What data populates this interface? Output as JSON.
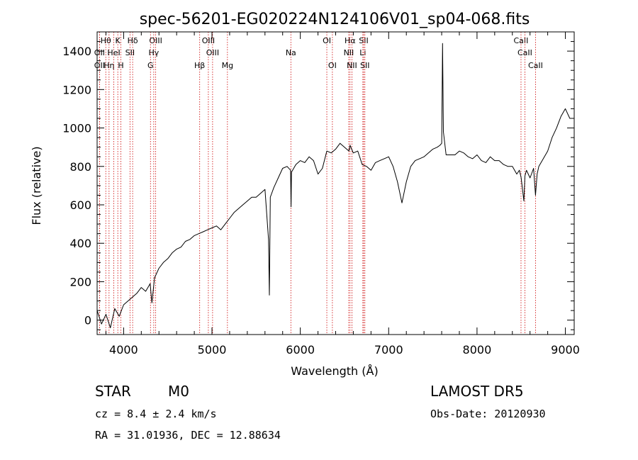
{
  "chart_data": {
    "type": "line",
    "title": "spec-56201-EG020224N124106V01_sp04-068.fits",
    "xlabel": "Wavelength (Å)",
    "ylabel": "Flux (relative)",
    "xlim": [
      3700,
      9100
    ],
    "ylim": [
      -75,
      1500
    ],
    "xticks": [
      4000,
      5000,
      6000,
      7000,
      8000,
      9000
    ],
    "yticks": [
      0,
      200,
      400,
      600,
      800,
      1000,
      1200,
      1400
    ],
    "grid": false,
    "series": [
      {
        "name": "",
        "x": [
          3700,
          3750,
          3800,
          3850,
          3900,
          3950,
          4000,
          4050,
          4100,
          4150,
          4200,
          4250,
          4300,
          4320,
          4350,
          4400,
          4450,
          4500,
          4550,
          4600,
          4650,
          4700,
          4750,
          4800,
          4850,
          4900,
          4950,
          5000,
          5050,
          5100,
          5150,
          5200,
          5250,
          5300,
          5350,
          5400,
          5450,
          5500,
          5550,
          5600,
          5640,
          5650,
          5660,
          5700,
          5750,
          5800,
          5850,
          5890,
          5895,
          5900,
          5950,
          6000,
          6050,
          6100,
          6150,
          6200,
          6250,
          6300,
          6350,
          6400,
          6450,
          6500,
          6550,
          6563,
          6600,
          6650,
          6700,
          6750,
          6800,
          6850,
          6900,
          6950,
          7000,
          7050,
          7100,
          7150,
          7200,
          7250,
          7300,
          7350,
          7400,
          7450,
          7500,
          7550,
          7580,
          7600,
          7610,
          7620,
          7650,
          7700,
          7750,
          7800,
          7850,
          7900,
          7950,
          8000,
          8050,
          8100,
          8150,
          8200,
          8250,
          8300,
          8350,
          8400,
          8450,
          8480,
          8500,
          8530,
          8542,
          8560,
          8600,
          8640,
          8662,
          8680,
          8700,
          8750,
          8800,
          8850,
          8900,
          8950,
          9000,
          9050,
          9060
        ],
        "y": [
          50,
          -20,
          30,
          -40,
          60,
          20,
          80,
          100,
          120,
          140,
          170,
          150,
          190,
          90,
          220,
          270,
          300,
          320,
          350,
          370,
          380,
          410,
          420,
          440,
          450,
          460,
          470,
          480,
          490,
          470,
          500,
          530,
          560,
          580,
          600,
          620,
          640,
          640,
          660,
          680,
          420,
          130,
          640,
          690,
          740,
          790,
          800,
          780,
          590,
          770,
          810,
          830,
          820,
          850,
          830,
          760,
          790,
          880,
          870,
          890,
          920,
          900,
          880,
          910,
          870,
          880,
          810,
          800,
          780,
          820,
          830,
          840,
          850,
          800,
          720,
          610,
          720,
          800,
          830,
          840,
          850,
          870,
          890,
          900,
          910,
          920,
          1440,
          980,
          860,
          860,
          860,
          880,
          870,
          850,
          840,
          860,
          830,
          820,
          850,
          830,
          830,
          810,
          800,
          800,
          760,
          780,
          740,
          620,
          750,
          780,
          740,
          790,
          650,
          760,
          800,
          840,
          880,
          950,
          1000,
          1060,
          1100,
          1050,
          1050
        ]
      }
    ],
    "spectral_lines": [
      {
        "label": "Hθ",
        "wavelength": 3798,
        "row": 0
      },
      {
        "label": "OII",
        "wavelength": 3727,
        "row": 1
      },
      {
        "label": "OII",
        "wavelength": 3727,
        "row": 2
      },
      {
        "label": "Hη",
        "wavelength": 3835,
        "row": 2
      },
      {
        "label": "K",
        "wavelength": 3934,
        "row": 0
      },
      {
        "label": "HeI",
        "wavelength": 3889,
        "row": 1
      },
      {
        "label": "H",
        "wavelength": 3969,
        "row": 2
      },
      {
        "label": "Hδ",
        "wavelength": 4102,
        "row": 0
      },
      {
        "label": "SII",
        "wavelength": 4072,
        "row": 1
      },
      {
        "label": "OIII",
        "wavelength": 4363,
        "row": 0
      },
      {
        "label": "Hγ",
        "wavelength": 4341,
        "row": 1
      },
      {
        "label": "G",
        "wavelength": 4304,
        "row": 2
      },
      {
        "label": "OIII",
        "wavelength": 4959,
        "row": 0
      },
      {
        "label": "OIII",
        "wavelength": 5007,
        "row": 1
      },
      {
        "label": "Hβ",
        "wavelength": 4861,
        "row": 2
      },
      {
        "label": "Mg",
        "wavelength": 5175,
        "row": 2
      },
      {
        "label": "Na",
        "wavelength": 5893,
        "row": 1
      },
      {
        "label": "OI",
        "wavelength": 6300,
        "row": 0
      },
      {
        "label": "OI",
        "wavelength": 6363,
        "row": 2
      },
      {
        "label": "Hα",
        "wavelength": 6563,
        "row": 0
      },
      {
        "label": "NII",
        "wavelength": 6548,
        "row": 1
      },
      {
        "label": "NII",
        "wavelength": 6584,
        "row": 2
      },
      {
        "label": "SII",
        "wavelength": 6717,
        "row": 0
      },
      {
        "label": "Li",
        "wavelength": 6708,
        "row": 1
      },
      {
        "label": "SII",
        "wavelength": 6731,
        "row": 2
      },
      {
        "label": "CaII",
        "wavelength": 8498,
        "row": 0
      },
      {
        "label": "CaII",
        "wavelength": 8542,
        "row": 1
      },
      {
        "label": "CaII",
        "wavelength": 8662,
        "row": 2
      }
    ]
  },
  "info": {
    "class_label": "STAR",
    "subclass_label": "M0",
    "survey_label": "LAMOST DR5",
    "cz_text": "cz = 8.4 ± 2.4 km/s",
    "obs_date_text": "Obs-Date: 20120930",
    "radec_text": "RA =  31.01936, DEC =  12.88634"
  }
}
